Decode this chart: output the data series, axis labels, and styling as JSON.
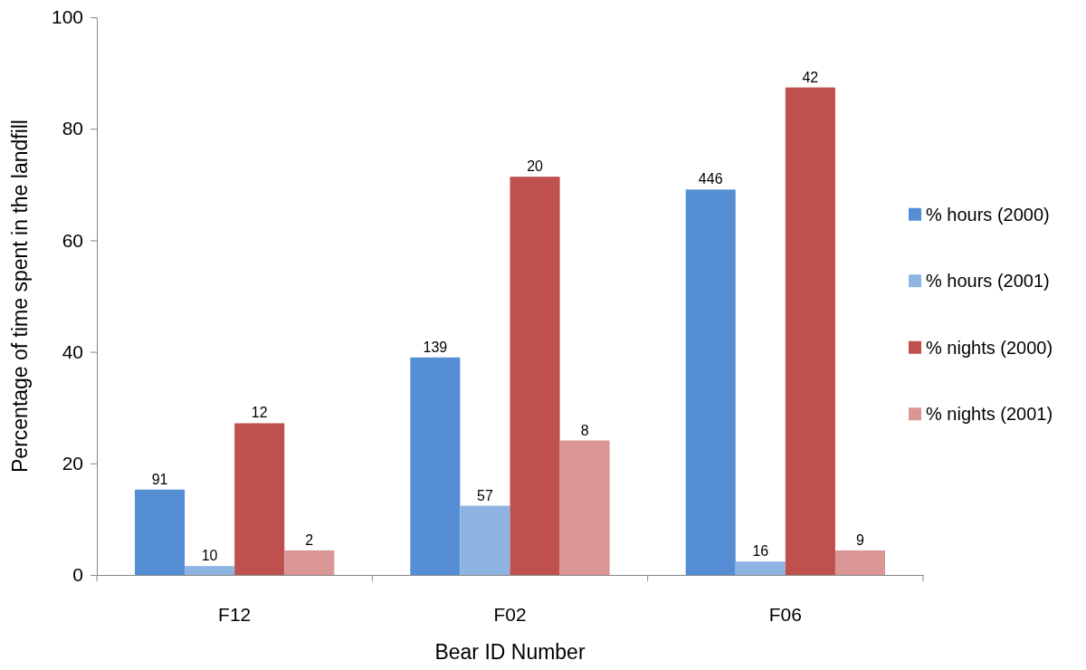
{
  "chart_data": {
    "type": "bar",
    "xlabel": "Bear ID Number",
    "ylabel": "Percentage of time spent in the landfill",
    "categories": [
      "F12",
      "F02",
      "F06"
    ],
    "series": [
      {
        "name": "% hours (2000)",
        "color": "#558ed5",
        "values": [
          15.3,
          39.0,
          69.1
        ]
      },
      {
        "name": "% hours (2001)",
        "color": "#8eb4e3",
        "values": [
          1.6,
          12.4,
          2.4
        ]
      },
      {
        "name": "% nights (2000)",
        "color": "#c0504d",
        "values": [
          27.2,
          71.4,
          87.4
        ]
      },
      {
        "name": "% nights (2001)",
        "color": "#d99694",
        "values": [
          4.4,
          24.1,
          4.4
        ]
      }
    ],
    "annotations": [
      "91",
      "10",
      "12",
      "2",
      "139",
      "57",
      "20",
      "8",
      "446",
      "16",
      "42",
      "9"
    ],
    "ylim": [
      0,
      100
    ],
    "yticks": [
      0,
      20,
      40,
      60,
      80,
      100
    ],
    "legend": "right"
  }
}
